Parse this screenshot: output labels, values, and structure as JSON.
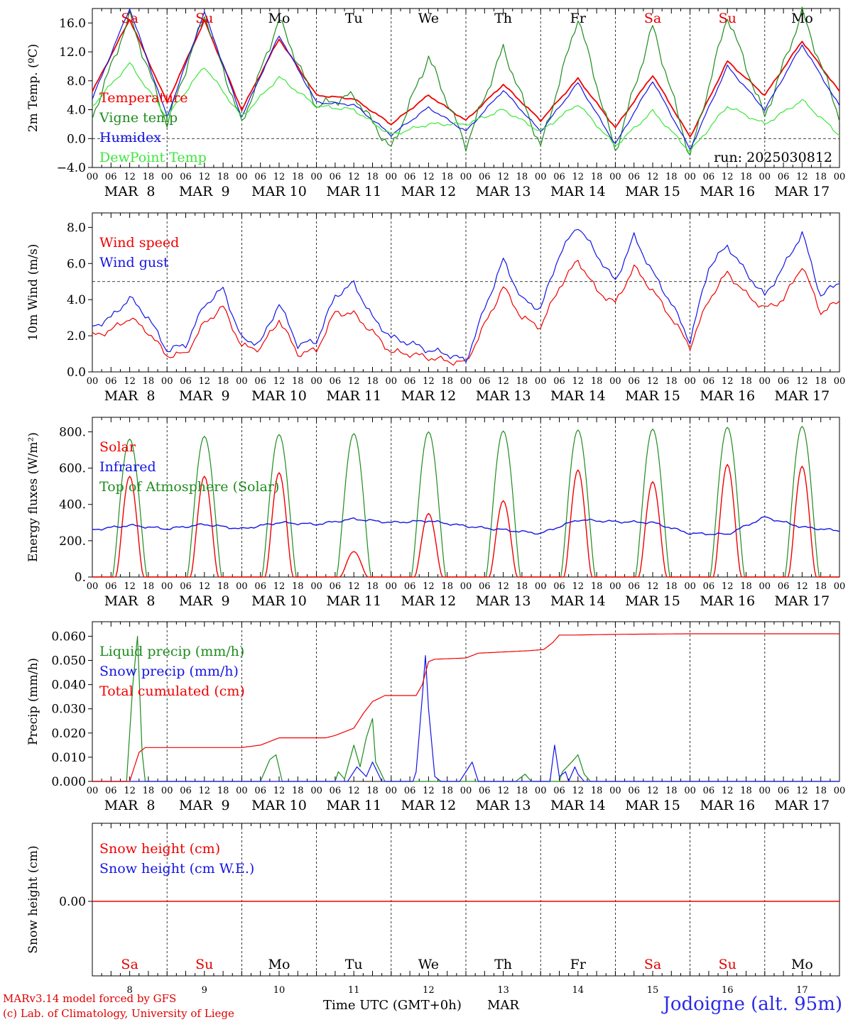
{
  "colors": {
    "red": "#f00000",
    "blue": "#1414e6",
    "green": "#1e8c1e",
    "lightgreen": "#3ce63c",
    "weekend": "#e00000",
    "weekday": "#000000",
    "axis": "#000000",
    "station": "#2a2ae8"
  },
  "footer": {
    "credit_line1": "MARv3.14 model forced by GFS",
    "credit_line2": "(c) Lab. of Climatology, University of Liege",
    "xaxis_title": "Time UTC (GMT+0h)",
    "xaxis_month": "MAR",
    "station": "Jodoigne (alt. 95m)"
  },
  "chart_data": [
    {
      "type": "line",
      "ylabel": "2m Temp. (ºC)",
      "ylim": [
        -4,
        18
      ],
      "yticks": [
        -4,
        0,
        4,
        8,
        12,
        16
      ],
      "ytick_labels": [
        "−4.0",
        "0.0",
        "4.0",
        "8.0",
        "12.0",
        "16.0"
      ],
      "reference_line": 0,
      "legend": [
        "Temperature",
        "Vigne temp",
        "Humidex",
        "DewPoint Temp"
      ],
      "legend_placement": "left",
      "annotation": "run: 2025030812",
      "day_names": [
        "Sa",
        "Su",
        "Mo",
        "Tu",
        "We",
        "Th",
        "Fr",
        "Sa",
        "Su",
        "Mo"
      ],
      "x_hours": [
        0,
        12,
        24,
        36,
        48,
        60,
        72,
        84,
        96,
        108,
        120,
        132,
        144,
        156,
        168,
        180,
        192,
        204,
        216,
        228,
        240
      ],
      "series": [
        {
          "name": "Temperature",
          "color": "red",
          "values": [
            6.5,
            16.5,
            5.0,
            16.3,
            4.0,
            13.8,
            6.0,
            5.5,
            2.0,
            6.0,
            2.5,
            7.5,
            2.5,
            8.3,
            1.5,
            8.8,
            0.2,
            10.7,
            6.0,
            13.5,
            6.5
          ]
        },
        {
          "name": "Vigne temp",
          "color": "green",
          "values": [
            3.0,
            17.0,
            2.0,
            17.2,
            2.0,
            16.5,
            4.5,
            6.0,
            -1.5,
            11.3,
            -1.0,
            12.5,
            -1.2,
            16.8,
            -1.8,
            15.5,
            -2.5,
            17.0,
            3.0,
            17.5,
            3.0
          ]
        },
        {
          "name": "Humidex",
          "color": "blue",
          "values": [
            5.5,
            18.0,
            3.0,
            17.5,
            3.0,
            14.3,
            5.0,
            4.7,
            0.5,
            4.3,
            1.0,
            6.7,
            1.0,
            7.7,
            -0.8,
            8.0,
            -1.5,
            10.0,
            4.0,
            13.0,
            4.5
          ]
        },
        {
          "name": "DewPoint Temp",
          "color": "lightgreen",
          "values": [
            4.5,
            10.4,
            3.0,
            10.0,
            3.0,
            8.5,
            4.5,
            4.0,
            0.5,
            2.0,
            2.0,
            4.0,
            1.0,
            4.8,
            -1.0,
            3.8,
            -1.8,
            4.5,
            2.0,
            5.3,
            0.5
          ]
        }
      ]
    },
    {
      "type": "line",
      "ylabel": "10m Wind (m/s)",
      "ylim": [
        0,
        8.8
      ],
      "yticks": [
        0,
        2,
        4,
        6,
        8
      ],
      "ytick_labels": [
        "0.0",
        "2.0",
        "4.0",
        "6.0",
        "8.0"
      ],
      "reference_line": 5,
      "legend": [
        "Wind speed",
        "Wind gust"
      ],
      "legend_placement": "top-left",
      "x_hours": [
        0,
        6,
        12,
        18,
        24,
        30,
        36,
        42,
        48,
        54,
        60,
        66,
        72,
        78,
        84,
        90,
        96,
        102,
        108,
        114,
        120,
        126,
        132,
        138,
        144,
        150,
        156,
        162,
        168,
        174,
        180,
        186,
        192,
        198,
        204,
        210,
        216,
        222,
        228,
        234,
        240
      ],
      "series": [
        {
          "name": "Wind speed",
          "color": "red",
          "values": [
            2.0,
            2.3,
            3.0,
            2.2,
            0.9,
            1.0,
            2.7,
            3.6,
            1.4,
            1.3,
            2.9,
            1.0,
            1.2,
            3.3,
            3.2,
            2.2,
            1.1,
            1.0,
            0.8,
            0.6,
            0.5,
            2.6,
            4.7,
            3.0,
            2.5,
            4.7,
            6.2,
            4.5,
            3.8,
            5.8,
            4.5,
            3.0,
            1.4,
            4.0,
            5.5,
            4.3,
            3.5,
            4.0,
            5.9,
            3.3,
            3.9
          ]
        },
        {
          "name": "Wind gust",
          "color": "blue",
          "values": [
            2.5,
            3.0,
            4.1,
            3.0,
            1.2,
            1.5,
            3.7,
            4.6,
            1.8,
            1.6,
            3.8,
            1.5,
            1.7,
            4.2,
            4.9,
            3.0,
            1.9,
            1.6,
            1.2,
            1.0,
            0.6,
            3.5,
            6.2,
            4.0,
            3.5,
            6.5,
            8.1,
            6.5,
            5.0,
            7.5,
            5.5,
            3.8,
            1.7,
            5.8,
            7.0,
            5.5,
            4.2,
            5.8,
            7.7,
            4.2,
            5.0
          ]
        }
      ]
    },
    {
      "type": "line",
      "ylabel": "Energy fluxes (W/m²)",
      "ylim": [
        0,
        880
      ],
      "yticks": [
        0,
        200,
        400,
        600,
        800
      ],
      "ytick_labels": [
        "0.",
        "200.",
        "400.",
        "600.",
        "800."
      ],
      "legend": [
        "Solar",
        "Infrared",
        "Top of Atmosphere (Solar)"
      ],
      "legend_placement": "top-left",
      "solar_daily_peaks": [
        555,
        555,
        575,
        140,
        350,
        420,
        590,
        525,
        620,
        610
      ],
      "toa_daily_peaks": [
        760,
        775,
        785,
        790,
        800,
        805,
        810,
        815,
        825,
        830
      ],
      "series": [
        {
          "name": "Infrared",
          "color": "blue",
          "x_hours": [
            0,
            12,
            24,
            36,
            48,
            60,
            72,
            84,
            96,
            108,
            120,
            132,
            144,
            156,
            168,
            180,
            192,
            204,
            216,
            228,
            240
          ],
          "values": [
            260,
            285,
            265,
            290,
            265,
            300,
            290,
            320,
            300,
            310,
            280,
            260,
            240,
            315,
            305,
            300,
            240,
            235,
            330,
            275,
            255
          ]
        }
      ]
    },
    {
      "type": "line",
      "ylabel": "Precip (mm/h)",
      "ylim": [
        0,
        0.066
      ],
      "yticks": [
        0,
        0.01,
        0.02,
        0.03,
        0.04,
        0.05,
        0.06
      ],
      "ytick_labels": [
        "0.000",
        "0.010",
        "0.020",
        "0.030",
        "0.040",
        "0.050",
        "0.060"
      ],
      "legend": [
        "Liquid precip (mm/h)",
        "Snow precip (mm/h)",
        "Total cumulated (cm)"
      ],
      "legend_placement": "top-left",
      "series": [
        {
          "name": "Liquid precip (mm/h)",
          "color": "green",
          "x_hours": [
            0,
            11,
            13,
            14.5,
            16,
            17,
            54,
            57,
            59,
            61,
            78,
            79,
            81,
            84,
            86,
            88,
            90,
            91,
            94,
            104,
            112,
            126,
            136,
            139,
            141,
            144,
            150,
            151,
            154,
            156,
            158,
            160,
            240
          ],
          "values": [
            0,
            0,
            0.04,
            0.06,
            0.012,
            0,
            0,
            0.009,
            0.011,
            0,
            0,
            0.004,
            0.001,
            0.015,
            0.006,
            0.018,
            0.026,
            0.008,
            0,
            0,
            0,
            0,
            0,
            0.003,
            0,
            0,
            0,
            0.004,
            0.008,
            0.011,
            0.003,
            0,
            0
          ]
        },
        {
          "name": "Snow precip (mm/h)",
          "color": "blue",
          "x_hours": [
            0,
            82,
            85,
            88,
            90,
            93,
            103,
            104,
            106,
            107,
            108,
            110,
            112,
            118,
            122,
            124,
            130,
            147,
            148.5,
            150,
            152,
            153,
            155,
            156,
            158,
            240
          ],
          "values": [
            0,
            0,
            0.006,
            0.002,
            0.008,
            0,
            0,
            0.004,
            0.035,
            0.052,
            0.03,
            0.002,
            0,
            0,
            0.008,
            0,
            0,
            0,
            0.015,
            0.002,
            0.004,
            0.0,
            0.006,
            0.003,
            0,
            0
          ]
        },
        {
          "name": "Total cumulated (cm)",
          "color": "red",
          "x_hours": [
            0,
            12,
            15,
            17,
            48,
            54,
            60,
            75,
            78,
            84,
            87,
            90,
            94,
            104,
            106,
            108,
            110,
            120,
            124,
            140,
            145,
            148,
            150,
            155,
            170,
            190,
            240
          ],
          "values": [
            0,
            0,
            0.012,
            0.014,
            0.014,
            0.015,
            0.018,
            0.018,
            0.019,
            0.022,
            0.028,
            0.033,
            0.0355,
            0.0355,
            0.04,
            0.0495,
            0.0505,
            0.051,
            0.053,
            0.054,
            0.0545,
            0.0575,
            0.0605,
            0.0605,
            0.0608,
            0.061,
            0.061
          ]
        }
      ]
    },
    {
      "type": "line",
      "ylabel": "Snow height (cm)",
      "yticks": [
        0
      ],
      "ytick_labels": [
        "0.00"
      ],
      "legend": [
        "Snow height (cm)",
        "Snow height (cm W.E.)"
      ],
      "legend_placement": "top-left",
      "day_names": [
        "Sa",
        "Su",
        "Mo",
        "Tu",
        "We",
        "Th",
        "Fr",
        "Sa",
        "Su",
        "Mo"
      ],
      "day_numbers": [
        "8",
        "9",
        "10",
        "11",
        "12",
        "13",
        "14",
        "15",
        "16",
        "17"
      ],
      "series": [
        {
          "name": "Snow height (cm)",
          "color": "red",
          "x_hours": [
            0,
            240
          ],
          "values": [
            0,
            0
          ]
        }
      ]
    }
  ],
  "shared_x_axis": {
    "hour_labels": [
      "00",
      "06",
      "12",
      "18"
    ],
    "date_labels": [
      "MAR  8",
      "MAR  9",
      "MAR 10",
      "MAR 11",
      "MAR 12",
      "MAR 13",
      "MAR 14",
      "MAR 15",
      "MAR 16",
      "MAR 17"
    ],
    "weekend_flags": [
      true,
      true,
      false,
      false,
      false,
      false,
      false,
      true,
      true,
      false
    ]
  }
}
